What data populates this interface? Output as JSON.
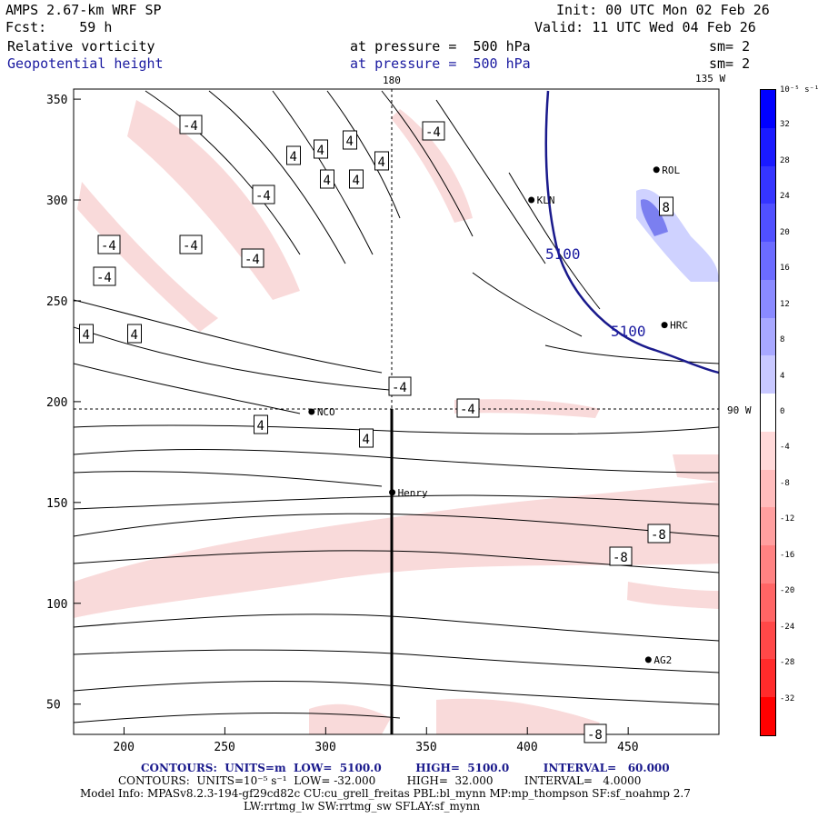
{
  "header": {
    "model": "AMPS 2.67-km WRF SP",
    "init": "Init: 00 UTC Mon 02 Feb 26",
    "fcst": "Fcst:    59 h",
    "valid": "Valid: 11 UTC Wed 04 Feb 26",
    "field1": "Relative vorticity",
    "field1_level": "at pressure =  500 hPa",
    "field1_sm": "sm= 2",
    "field2": "Geopotential height",
    "field2_level": "at pressure =  500 hPa",
    "field2_sm": "sm= 2"
  },
  "map": {
    "meridian_labels": [
      "180",
      "135 W"
    ],
    "parallel_label": "90 W",
    "stations": [
      {
        "name": "KLN",
        "x": 402,
        "y": 300
      },
      {
        "name": "HRC",
        "x": 468,
        "y": 238
      },
      {
        "name": "NCO",
        "x": 293,
        "y": 195
      },
      {
        "name": "Henry",
        "x": 333,
        "y": 155
      },
      {
        "name": "AG2",
        "x": 460,
        "y": 72
      },
      {
        "name": "ROL",
        "x": 464,
        "y": 315
      }
    ],
    "height_labels": [
      "5100",
      "5100"
    ],
    "x_axis": {
      "min": 175,
      "max": 495,
      "ticks": [
        200,
        250,
        300,
        350,
        400,
        450
      ]
    },
    "y_axis": {
      "min": 35,
      "max": 355,
      "ticks": [
        50,
        100,
        150,
        200,
        250,
        300,
        350
      ]
    },
    "cross_section_line": {
      "x": 334,
      "y0": 35,
      "y1": 195
    },
    "crosshair": {
      "x": 334,
      "y": 195
    }
  },
  "colorbar": {
    "units": "10⁻⁵ s⁻¹",
    "labels": [
      "32",
      "28",
      "24",
      "20",
      "16",
      "12",
      "8",
      "4",
      "0",
      "-4",
      "-8",
      "-12",
      "-16",
      "-20",
      "-24",
      "-28",
      "-32"
    ],
    "colors": [
      "#0000ff",
      "#1a1aff",
      "#3535ff",
      "#5050ff",
      "#6b6bff",
      "#8a8aff",
      "#a8a8ff",
      "#c8c8ff",
      "#ffffff",
      "#ffd9d9",
      "#ffbcbc",
      "#ff9f9f",
      "#ff8282",
      "#ff6565",
      "#ff4848",
      "#ff2b2b",
      "#ff0000"
    ]
  },
  "footer": {
    "line1": "CONTOURS:  UNITS=m  LOW=  5100.0         HIGH=  5100.0         INTERVAL=   60.000",
    "line2": "CONTOURS:  UNITS=10⁻⁵ s⁻¹  LOW= -32.000         HIGH=  32.000         INTERVAL=   4.0000",
    "line3": "Model Info: MPASv8.2.3-194-gf29cd82c CU:cu_grell_freitas PBL:bl_mynn MP:mp_thompson SF:sf_noahmp 2.7",
    "line4": "LW:rrtmg_lw SW:rrtmg_sw SFLAY:sf_mynn"
  },
  "contour_labels": [
    "-4",
    "-4",
    "-4",
    "-4",
    "-4",
    "-4",
    "-4",
    "-4",
    "-4",
    "4",
    "4",
    "4",
    "4",
    "4",
    "4",
    "4",
    "4",
    "4",
    "4",
    "-8",
    "-8",
    "-8",
    "8"
  ]
}
